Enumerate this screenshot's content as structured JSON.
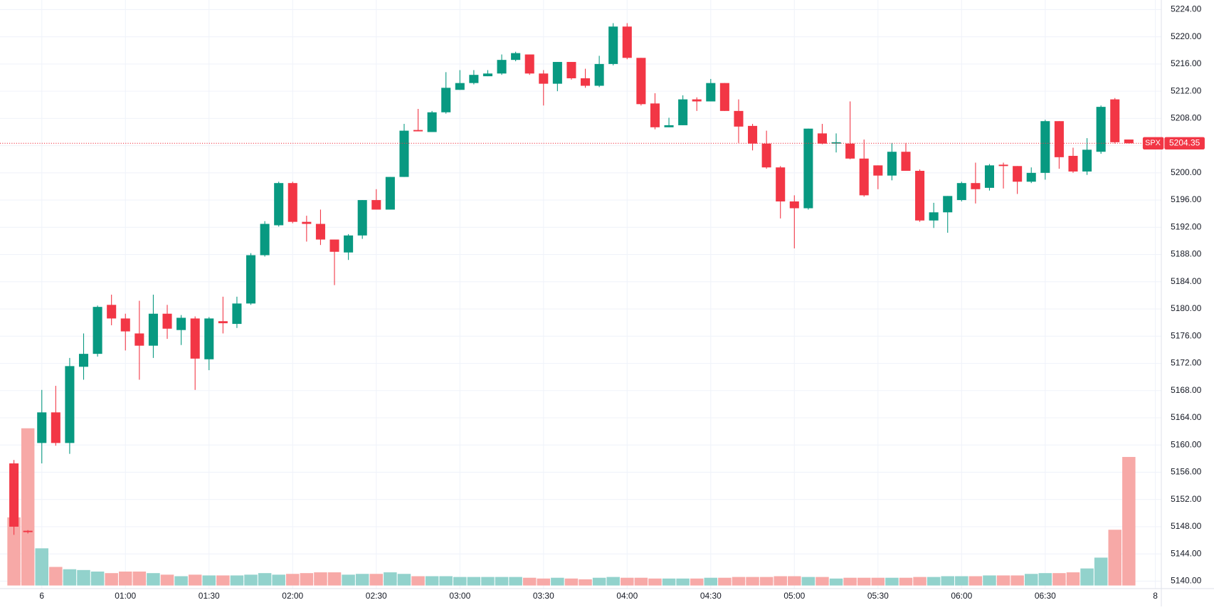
{
  "chart_data": {
    "type": "candlestick",
    "symbol": "SPX",
    "last_price": 5204.35,
    "last_price_label": "5204.35",
    "up_color": "#089981",
    "down_color": "#f23645",
    "up_volume_color": "#92d2cc",
    "down_volume_color": "#f7a9a7",
    "grid": true,
    "open": [
      5157.3,
      5147.4,
      5160.3,
      5164.8,
      5160.3,
      5171.5,
      5173.4,
      5180.6,
      5178.6,
      5176.4,
      5174.6,
      5179.3,
      5176.9,
      5178.6,
      5172.6,
      5178.2,
      5177.8,
      5180.8,
      5187.9,
      5192.3,
      5198.5,
      5192.8,
      5192.5,
      5190.2,
      5188.3,
      5190.8,
      5196.0,
      5194.6,
      5199.4,
      5206.3,
      5206.0,
      5208.9,
      5212.2,
      5213.2,
      5214.2,
      5214.6,
      5216.6,
      5217.4,
      5214.6,
      5213.1,
      5216.3,
      5213.9,
      5212.8,
      5216.0,
      5221.5,
      5216.9,
      5210.2,
      5206.7,
      5207.0,
      5210.8,
      5210.5,
      5213.2,
      5209.1,
      5206.9,
      5204.3,
      5200.8,
      5195.8,
      5194.8,
      5205.8,
      5204.3,
      5204.3,
      5202.1,
      5201.1,
      5199.6,
      5203.1,
      5200.3,
      5193.0,
      5194.2,
      5196.0,
      5198.5,
      5197.8,
      5201.2,
      5201.0,
      5198.7,
      5200.0,
      5207.6,
      5202.5,
      5200.2,
      5203.1,
      5210.8,
      5204.9
    ],
    "close": [
      5148.0,
      5147.2,
      5164.8,
      5160.3,
      5171.6,
      5173.4,
      5180.3,
      5178.6,
      5176.7,
      5174.6,
      5179.3,
      5177.1,
      5178.7,
      5172.7,
      5178.6,
      5177.9,
      5180.8,
      5187.9,
      5192.5,
      5198.5,
      5192.8,
      5192.5,
      5190.2,
      5188.4,
      5190.8,
      5196.0,
      5194.6,
      5199.4,
      5206.2,
      5206.1,
      5208.9,
      5212.5,
      5213.2,
      5214.4,
      5214.6,
      5216.6,
      5217.6,
      5214.6,
      5213.1,
      5216.3,
      5213.9,
      5212.8,
      5216.0,
      5221.5,
      5216.9,
      5210.1,
      5206.7,
      5207.0,
      5210.8,
      5210.5,
      5213.2,
      5209.1,
      5206.8,
      5204.3,
      5200.8,
      5195.8,
      5194.8,
      5206.5,
      5204.3,
      5204.5,
      5202.1,
      5196.7,
      5199.6,
      5203.1,
      5200.3,
      5193.0,
      5194.2,
      5196.6,
      5198.5,
      5197.6,
      5201.1,
      5201.0,
      5198.7,
      5200.0,
      5207.6,
      5202.3,
      5200.2,
      5203.4,
      5209.7,
      5204.5,
      5204.35
    ],
    "high": [
      5157.8,
      5147.5,
      5168.1,
      5168.7,
      5172.8,
      5176.4,
      5180.5,
      5182.1,
      5179.3,
      5181.2,
      5182.1,
      5180.6,
      5179.1,
      5178.9,
      5178.8,
      5181.8,
      5181.8,
      5188.2,
      5192.9,
      5198.7,
      5198.7,
      5193.7,
      5194.6,
      5190.2,
      5191.0,
      5196.0,
      5197.6,
      5199.4,
      5207.2,
      5209.4,
      5209.1,
      5214.8,
      5215.1,
      5215.1,
      5215.1,
      5217.4,
      5217.8,
      5217.4,
      5215.1,
      5216.3,
      5216.3,
      5215.3,
      5217.2,
      5222.0,
      5222.0,
      5216.9,
      5211.7,
      5208.1,
      5211.4,
      5211.1,
      5213.8,
      5213.2,
      5210.8,
      5207.2,
      5206.2,
      5201.0,
      5196.7,
      5206.5,
      5207.2,
      5205.8,
      5210.5,
      5204.9,
      5201.1,
      5204.4,
      5204.4,
      5200.5,
      5195.6,
      5196.6,
      5198.7,
      5201.5,
      5201.3,
      5201.5,
      5201.0,
      5200.8,
      5207.8,
      5207.6,
      5203.7,
      5205.1,
      5209.9,
      5211.0,
      5204.9
    ],
    "low": [
      5146.8,
      5147.0,
      5157.3,
      5159.9,
      5158.7,
      5169.6,
      5173.0,
      5177.6,
      5173.9,
      5169.6,
      5172.8,
      5175.6,
      5174.7,
      5168.1,
      5171.0,
      5176.4,
      5177.2,
      5180.6,
      5187.7,
      5192.1,
      5192.6,
      5189.9,
      5189.4,
      5183.5,
      5187.2,
      5190.3,
      5194.6,
      5194.6,
      5199.4,
      5206.1,
      5206.0,
      5208.7,
      5212.2,
      5213.0,
      5214.2,
      5214.4,
      5216.4,
      5214.4,
      5209.9,
      5212.0,
      5213.7,
      5212.5,
      5212.6,
      5215.8,
      5216.7,
      5209.9,
      5206.4,
      5206.7,
      5207.0,
      5209.1,
      5210.5,
      5209.1,
      5204.4,
      5203.3,
      5200.6,
      5193.3,
      5188.9,
      5194.6,
      5204.2,
      5203.0,
      5202.0,
      5196.5,
      5197.6,
      5198.9,
      5200.3,
      5192.8,
      5191.9,
      5191.2,
      5195.8,
      5195.5,
      5197.4,
      5197.7,
      5196.9,
      5198.5,
      5199.0,
      5200.6,
      5200.0,
      5199.7,
      5202.8,
      5204.3,
      5204.3
    ],
    "volumes": [
      88,
      203,
      48,
      24,
      21,
      20,
      18,
      16,
      18,
      18,
      16,
      14,
      12,
      14,
      13,
      13,
      13,
      14,
      16,
      14,
      15,
      16,
      17,
      17,
      14,
      15,
      15,
      17,
      15,
      12,
      12,
      12,
      11,
      11,
      11,
      11,
      11,
      10,
      9,
      10,
      9,
      8,
      10,
      11,
      10,
      10,
      9,
      9,
      9,
      9,
      10,
      10,
      11,
      11,
      11,
      12,
      12,
      11,
      11,
      9,
      10,
      10,
      10,
      10,
      10,
      11,
      11,
      12,
      12,
      12,
      13,
      13,
      13,
      15,
      16,
      16,
      17,
      22,
      36,
      72,
      166
    ],
    "vlim": [
      0,
      210
    ],
    "ylim": [
      5138.9,
      5225.4
    ],
    "yticks": [
      {
        "value": 5140,
        "label": "5140.00"
      },
      {
        "value": 5144,
        "label": "5144.00"
      },
      {
        "value": 5148,
        "label": "5148.00"
      },
      {
        "value": 5152,
        "label": "5152.00"
      },
      {
        "value": 5156,
        "label": "5156.00"
      },
      {
        "value": 5160,
        "label": "5160.00"
      },
      {
        "value": 5164,
        "label": "5164.00"
      },
      {
        "value": 5168,
        "label": "5168.00"
      },
      {
        "value": 5172,
        "label": "5172.00"
      },
      {
        "value": 5176,
        "label": "5176.00"
      },
      {
        "value": 5180,
        "label": "5180.00"
      },
      {
        "value": 5184,
        "label": "5184.00"
      },
      {
        "value": 5188,
        "label": "5188.00"
      },
      {
        "value": 5192,
        "label": "5192.00"
      },
      {
        "value": 5196,
        "label": "5196.00"
      },
      {
        "value": 5200,
        "label": "5200.00"
      },
      {
        "value": 5204,
        "label": "5204.00"
      },
      {
        "value": 5208,
        "label": "5208.00"
      },
      {
        "value": 5212,
        "label": "5212.00"
      },
      {
        "value": 5216,
        "label": "5216.00"
      },
      {
        "value": 5220,
        "label": "5220.00"
      },
      {
        "value": 5224,
        "label": "5224.00"
      }
    ],
    "xticks": [
      {
        "value": 2,
        "label": "6"
      },
      {
        "value": 8,
        "label": "01:00"
      },
      {
        "value": 14,
        "label": "01:30"
      },
      {
        "value": 20,
        "label": "02:00"
      },
      {
        "value": 26,
        "label": "02:30"
      },
      {
        "value": 32,
        "label": "03:00"
      },
      {
        "value": 38,
        "label": "03:30"
      },
      {
        "value": 44,
        "label": "04:00"
      },
      {
        "value": 50,
        "label": "04:30"
      },
      {
        "value": 56,
        "label": "05:00"
      },
      {
        "value": 62,
        "label": "05:30"
      },
      {
        "value": 68,
        "label": "06:00"
      },
      {
        "value": 74,
        "label": "06:30"
      },
      {
        "value": 81.9,
        "label": "8"
      }
    ]
  }
}
